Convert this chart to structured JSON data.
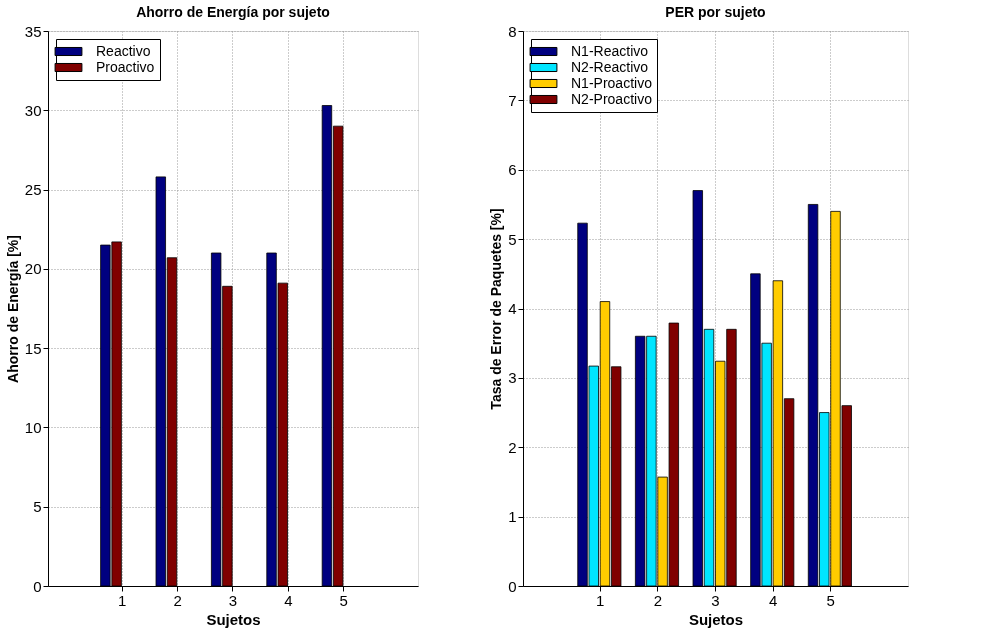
{
  "chart_data": [
    {
      "type": "bar",
      "title": "Ahorro de Energía por sujeto",
      "xlabel": "Sujetos",
      "ylabel": "Ahorro de Energía [%]",
      "categories": [
        "1",
        "2",
        "3",
        "4",
        "5"
      ],
      "series": [
        {
          "name": "Reactivo",
          "color": "#000080",
          "values": [
            21.5,
            25.8,
            21.0,
            21.0,
            30.3
          ]
        },
        {
          "name": "Proactivo",
          "color": "#800000",
          "values": [
            21.7,
            20.7,
            18.9,
            19.1,
            29.0
          ]
        }
      ],
      "ylim": [
        0,
        35
      ],
      "yticks": [
        0,
        5,
        10,
        15,
        20,
        25,
        30,
        35
      ],
      "grid": true,
      "legend": "top left"
    },
    {
      "type": "bar",
      "title": "PER por sujeto",
      "xlabel": "Sujetos",
      "ylabel": "Tasa de Error de Paquetes [%]",
      "categories": [
        "1",
        "2",
        "3",
        "4",
        "5"
      ],
      "series": [
        {
          "name": "N1-Reactivo",
          "color": "#000080",
          "values": [
            5.23,
            3.6,
            5.7,
            4.5,
            5.5
          ]
        },
        {
          "name": "N2-Reactivo",
          "color": "#00e5ff",
          "values": [
            3.17,
            3.6,
            3.7,
            3.5,
            2.5
          ]
        },
        {
          "name": "N1-Proactivo",
          "color": "#ffcc00",
          "values": [
            4.1,
            1.57,
            3.24,
            4.4,
            5.4
          ]
        },
        {
          "name": "N2-Proactivo",
          "color": "#800000",
          "values": [
            3.16,
            3.79,
            3.7,
            2.7,
            2.6
          ]
        }
      ],
      "ylim": [
        0,
        8
      ],
      "yticks": [
        0,
        1,
        2,
        3,
        4,
        5,
        6,
        7,
        8
      ],
      "grid": true,
      "legend": "top left"
    }
  ]
}
